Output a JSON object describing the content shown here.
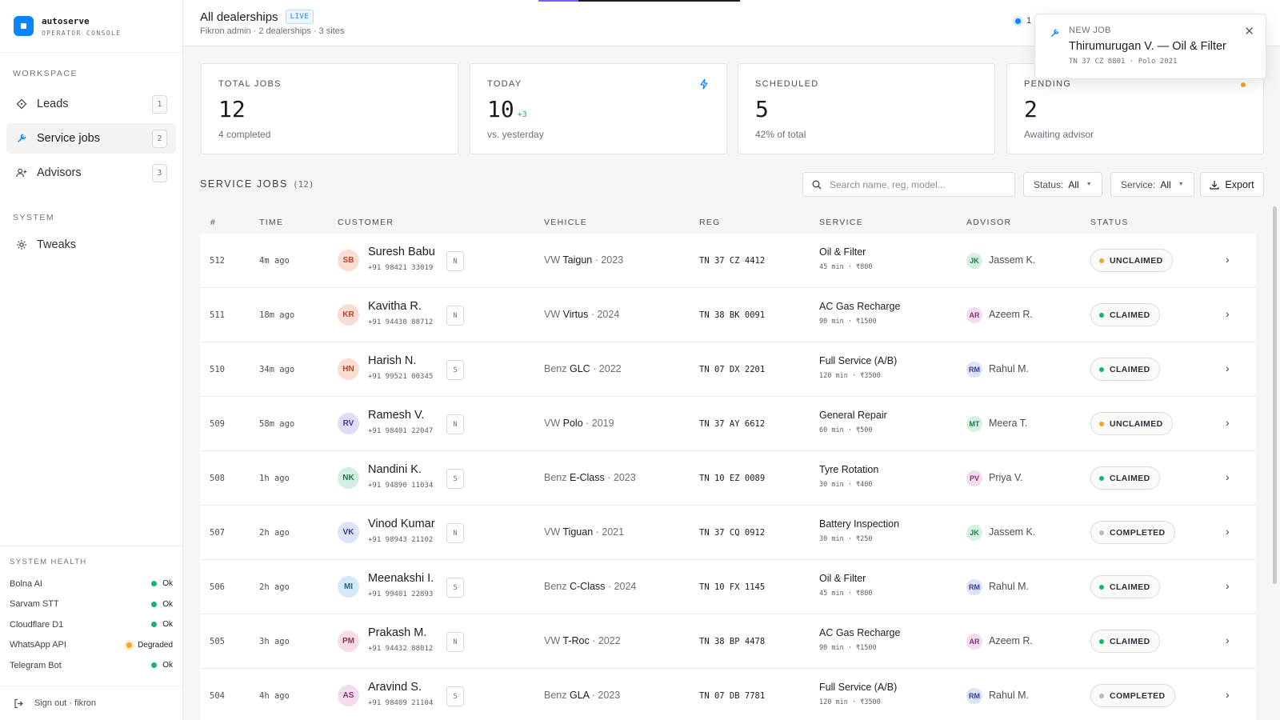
{
  "brand": {
    "name": "autoserve",
    "subtitle": "OPERATOR CONSOLE",
    "accent": "#0a84ff"
  },
  "sidebar": {
    "workspace_label": "WORKSPACE",
    "system_label": "SYSTEM",
    "items": [
      {
        "label": "Leads",
        "count": "1",
        "icon": "diamond-icon"
      },
      {
        "label": "Service jobs",
        "count": "2",
        "icon": "wrench-icon",
        "active": true
      },
      {
        "label": "Advisors",
        "count": "3",
        "icon": "user-plus-icon"
      }
    ],
    "system_items": [
      {
        "label": "Tweaks",
        "icon": "gear-icon"
      }
    ],
    "health_title": "SYSTEM HEALTH",
    "health": [
      {
        "name": "Bolna AI",
        "status": "Ok"
      },
      {
        "name": "Sarvam STT",
        "status": "Ok"
      },
      {
        "name": "Cloudflare D1",
        "status": "Ok"
      },
      {
        "name": "WhatsApp API",
        "status": "Degraded"
      },
      {
        "name": "Telegram Bot",
        "status": "Ok"
      }
    ],
    "signout": "Sign out · fikron"
  },
  "header": {
    "title": "All dealerships",
    "live": "LIVE",
    "subtitle": "Fikron admin · 2 dealerships · 3 sites",
    "indicator": "1"
  },
  "toast": {
    "label": "NEW JOB",
    "title": "Thirumurugan V. — Oil & Filter",
    "sub": "TN 37 CZ 8801 · Polo 2021"
  },
  "stats": [
    {
      "label": "TOTAL JOBS",
      "value": "12",
      "note": "4 completed"
    },
    {
      "label": "TODAY",
      "value": "10",
      "delta": "+3",
      "note": "vs. yesterday",
      "icon": "bolt-icon"
    },
    {
      "label": "SCHEDULED",
      "value": "5",
      "note": "42% of total"
    },
    {
      "label": "PENDING",
      "value": "2",
      "note": "Awaiting advisor"
    }
  ],
  "table": {
    "title": "SERVICE JOBS",
    "count": "(12)",
    "search_placeholder": "Search name, reg, model...",
    "status_filter": {
      "label": "Status:",
      "value": "All"
    },
    "service_filter": {
      "label": "Service:",
      "value": "All"
    },
    "export": "Export",
    "columns": [
      "#",
      "TIME",
      "CUSTOMER",
      "VEHICLE",
      "REG",
      "SERVICE",
      "ADVISOR",
      "STATUS"
    ],
    "rows": [
      {
        "num": "512",
        "time": "4m ago",
        "initials": "SB",
        "name": "Suresh Babu",
        "phone": "+91 98421 33019",
        "tag": "N",
        "make": "VW",
        "model": "Taigun",
        "year": "· 2023",
        "reg": "TN 37 CZ 4412",
        "service": "Oil & Filter",
        "meta": "45 min · ₹800",
        "adv_initials": "JK",
        "advisor": "Jassem K.",
        "status": "UNCLAIMED",
        "avatar_color": "#f9ddd3",
        "avatar_text": "#b4432a",
        "adv_color": "#d6f1e1",
        "adv_text": "#1d7a48",
        "status_color": "#f5a524"
      },
      {
        "num": "511",
        "time": "18m ago",
        "initials": "KR",
        "name": "Kavitha R.",
        "phone": "+91 94430 88712",
        "tag": "N",
        "make": "VW",
        "model": "Virtus",
        "year": "· 2024",
        "reg": "TN 38 BK 0091",
        "service": "AC Gas Recharge",
        "meta": "90 min · ₹1500",
        "adv_initials": "AR",
        "advisor": "Azeem R.",
        "status": "CLAIMED",
        "avatar_color": "#f9ddd3",
        "avatar_text": "#b4432a",
        "adv_color": "#f2dcef",
        "adv_text": "#8b2f7c",
        "status_color": "#12b76a"
      },
      {
        "num": "510",
        "time": "34m ago",
        "initials": "HN",
        "name": "Harish N.",
        "phone": "+91 99521 00345",
        "tag": "S",
        "make": "Benz",
        "model": "GLC",
        "year": "· 2022",
        "reg": "TN 07 DX 2201",
        "service": "Full Service (A/B)",
        "meta": "120 min · ₹3500",
        "adv_initials": "RM",
        "advisor": "Rahul M.",
        "status": "CLAIMED",
        "avatar_color": "#f9ddd3",
        "avatar_text": "#b4432a",
        "adv_color": "#dfe3f7",
        "adv_text": "#34408f",
        "status_color": "#12b76a"
      },
      {
        "num": "509",
        "time": "58m ago",
        "initials": "RV",
        "name": "Ramesh V.",
        "phone": "+91 98401 22047",
        "tag": "N",
        "make": "VW",
        "model": "Polo",
        "year": "· 2019",
        "reg": "TN 37 AY 6612",
        "service": "General Repair",
        "meta": "60 min · ₹500",
        "adv_initials": "MT",
        "advisor": "Meera T.",
        "status": "UNCLAIMED",
        "avatar_color": "#e1dcf7",
        "avatar_text": "#4a3a9c",
        "adv_color": "#d6f1e1",
        "adv_text": "#1d7a48",
        "status_color": "#f5a524"
      },
      {
        "num": "508",
        "time": "1h ago",
        "initials": "NK",
        "name": "Nandini K.",
        "phone": "+91 94890 11034",
        "tag": "S",
        "make": "Benz",
        "model": "E-Class",
        "year": "· 2023",
        "reg": "TN 10 EZ 0089",
        "service": "Tyre Rotation",
        "meta": "30 min · ₹400",
        "adv_initials": "PV",
        "advisor": "Priya V.",
        "status": "CLAIMED",
        "avatar_color": "#d3efe0",
        "avatar_text": "#1d7a48",
        "adv_color": "#f2dcef",
        "adv_text": "#8b2f7c",
        "status_color": "#12b76a"
      },
      {
        "num": "507",
        "time": "2h ago",
        "initials": "VK",
        "name": "Vinod Kumar",
        "phone": "+91 98943 21102",
        "tag": "N",
        "make": "VW",
        "model": "Tiguan",
        "year": "· 2021",
        "reg": "TN 37 CQ 0912",
        "service": "Battery Inspection",
        "meta": "30 min · ₹250",
        "adv_initials": "JK",
        "advisor": "Jassem K.",
        "status": "COMPLETED",
        "avatar_color": "#dfe3f7",
        "avatar_text": "#34408f",
        "adv_color": "#d6f1e1",
        "adv_text": "#1d7a48",
        "status_color": "#b8b8b5"
      },
      {
        "num": "506",
        "time": "2h ago",
        "initials": "MI",
        "name": "Meenakshi I.",
        "phone": "+91 99401 22893",
        "tag": "S",
        "make": "Benz",
        "model": "C-Class",
        "year": "· 2024",
        "reg": "TN 10 FX 1145",
        "service": "Oil & Filter",
        "meta": "45 min · ₹800",
        "adv_initials": "RM",
        "advisor": "Rahul M.",
        "status": "CLAIMED",
        "avatar_color": "#d3e9f5",
        "avatar_text": "#1f6690",
        "adv_color": "#dfe3f7",
        "adv_text": "#34408f",
        "status_color": "#12b76a"
      },
      {
        "num": "505",
        "time": "3h ago",
        "initials": "PM",
        "name": "Prakash M.",
        "phone": "+91 94432 88012",
        "tag": "N",
        "make": "VW",
        "model": "T-Roc",
        "year": "· 2022",
        "reg": "TN 38 BP 4478",
        "service": "AC Gas Recharge",
        "meta": "90 min · ₹1500",
        "adv_initials": "AR",
        "advisor": "Azeem R.",
        "status": "CLAIMED",
        "avatar_color": "#f6dde6",
        "avatar_text": "#9c2f55",
        "adv_color": "#f2dcef",
        "adv_text": "#8b2f7c",
        "status_color": "#12b76a"
      },
      {
        "num": "504",
        "time": "4h ago",
        "initials": "AS",
        "name": "Aravind S.",
        "phone": "+91 98409 21104",
        "tag": "S",
        "make": "Benz",
        "model": "GLA",
        "year": "· 2023",
        "reg": "TN 07 DB 7781",
        "service": "Full Service (A/B)",
        "meta": "120 min · ₹3500",
        "adv_initials": "RM",
        "advisor": "Rahul M.",
        "status": "COMPLETED",
        "avatar_color": "#f2dcef",
        "avatar_text": "#8b2f7c",
        "adv_color": "#dfe3f7",
        "adv_text": "#34408f",
        "status_color": "#b8b8b5"
      }
    ]
  }
}
